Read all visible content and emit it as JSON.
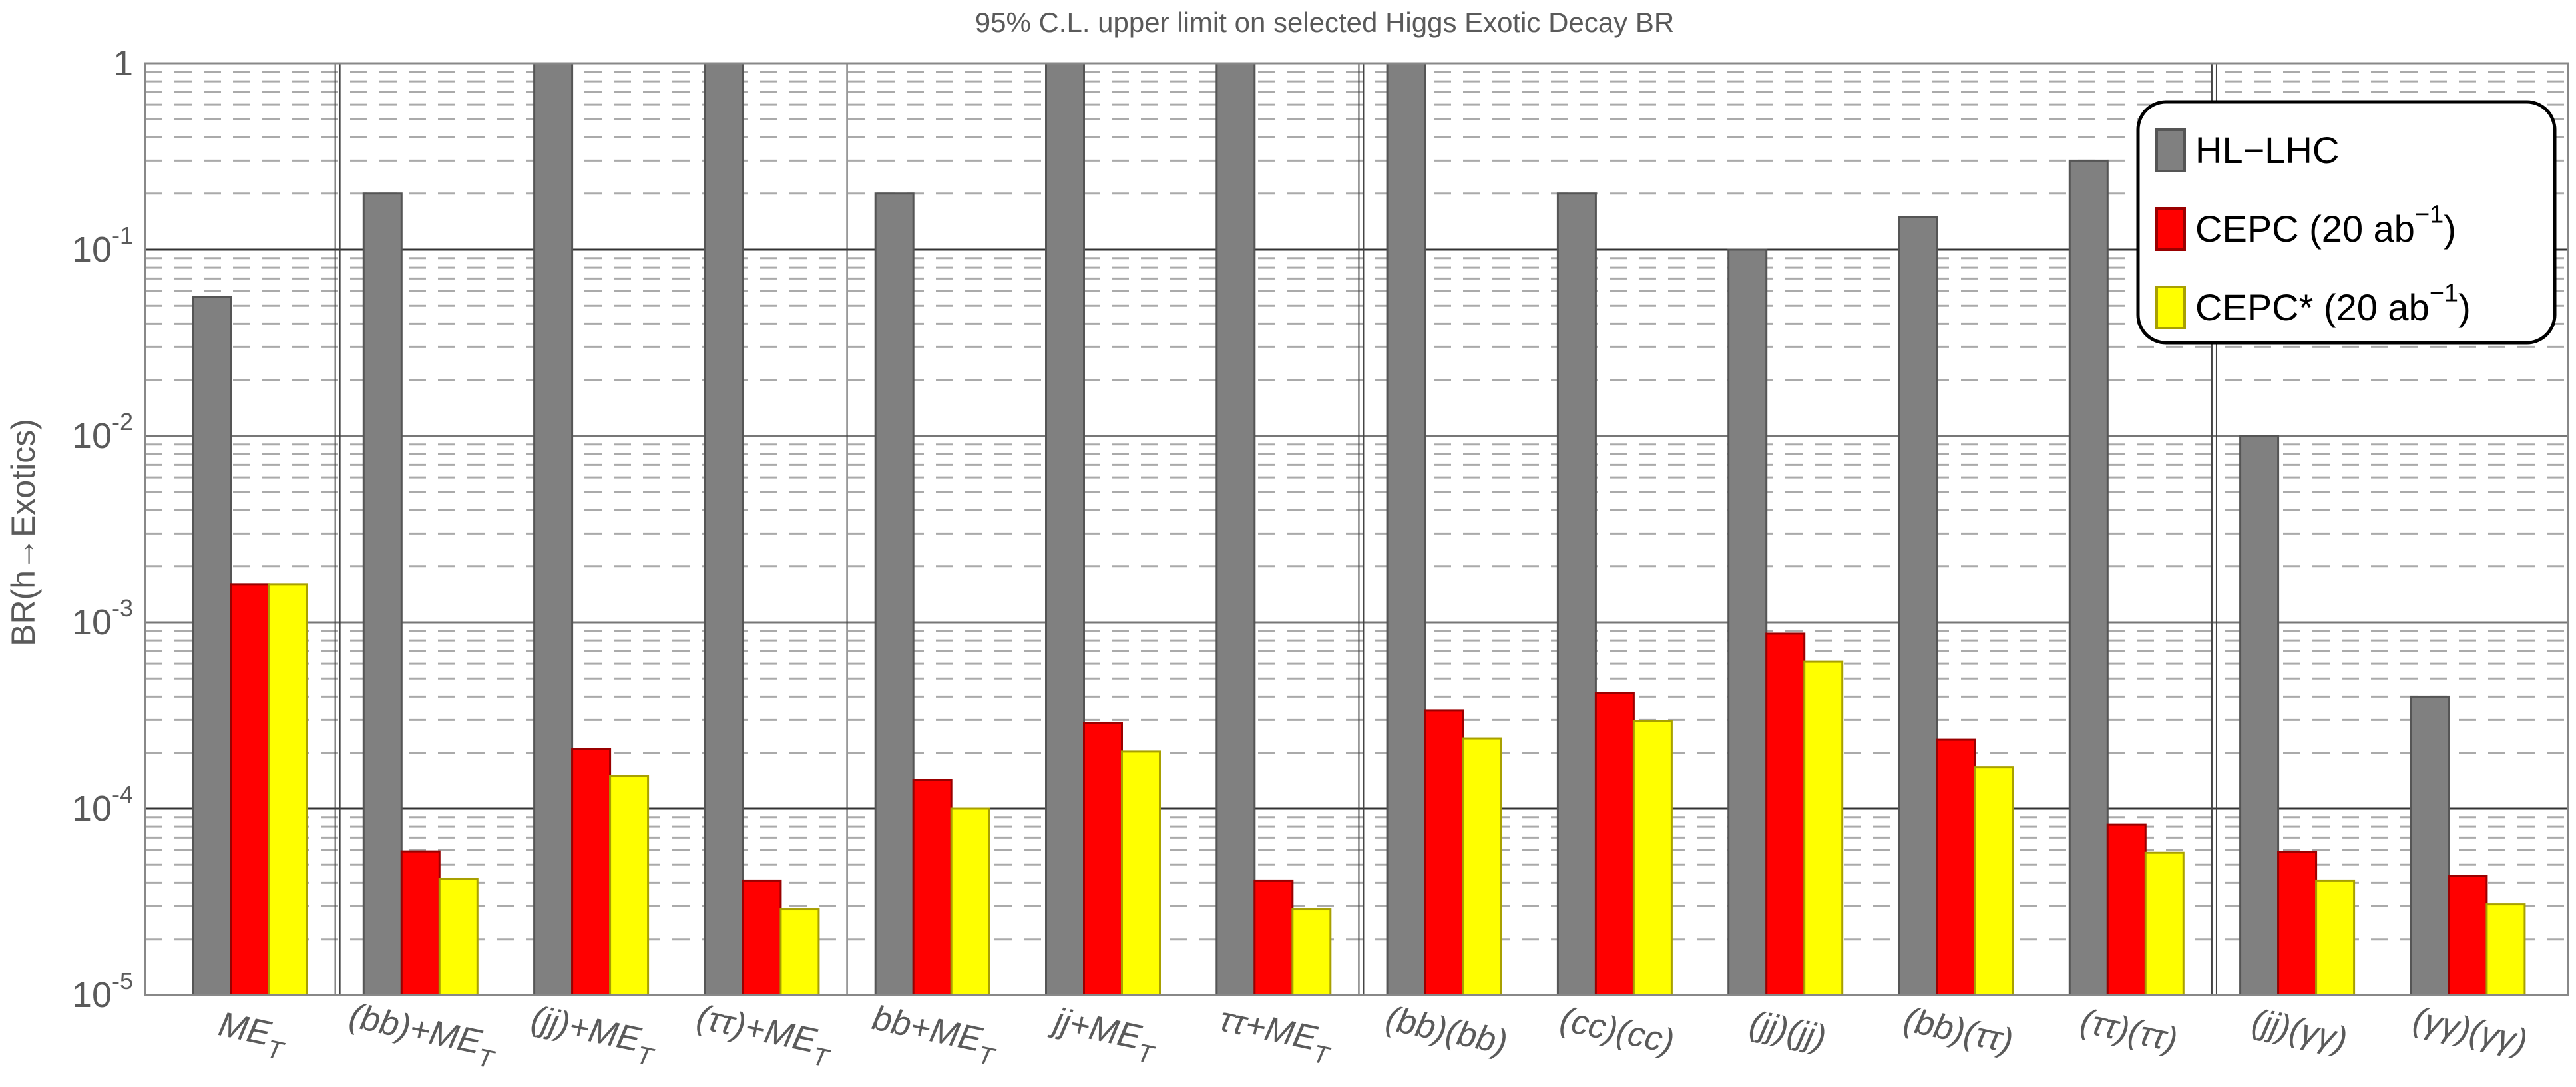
{
  "chart_data": {
    "type": "bar",
    "title": "95% C.L. upper limit on selected Higgs Exotic Decay BR",
    "ylabel": "BR(h→Exotics)",
    "xlabel": "",
    "yscale": "log",
    "ylim": [
      1e-05,
      1
    ],
    "yticks": [
      1,
      0.1,
      0.01,
      0.001,
      0.0001,
      1e-05
    ],
    "ytick_labels": [
      "1",
      "10^{-1}",
      "10^{-2}",
      "10^{-3}",
      "10^{-4}",
      "10^{-5}"
    ],
    "grid": "major solid, minor dashed",
    "legend_position": "top-right",
    "categories": [
      "ME_{T}",
      "(bb)+ME_{T}",
      "(jj)+ME_{T}",
      "(ττ)+ME_{T}",
      "bb+ME_{T}",
      "jj+ME_{T}",
      "ττ+ME_{T}",
      "(bb)(bb)",
      "(cc)(cc)",
      "(jj)(jj)",
      "(bb)(ττ)",
      "(ττ)(ττ)",
      "(jj)(γγ)",
      "(γγ)(γγ)"
    ],
    "series": [
      {
        "name": "HL−LHC",
        "color": "#808080",
        "values": [
          0.056,
          0.2,
          1,
          1,
          0.2,
          1,
          1,
          1,
          0.2,
          0.1,
          0.15,
          0.3,
          0.01,
          0.0004
        ]
      },
      {
        "name": "CEPC (20 ab^{−1})",
        "color": "#ff0000",
        "values": [
          0.0016,
          5.9e-05,
          0.00021,
          4.1e-05,
          0.000142,
          0.000288,
          4.1e-05,
          0.000338,
          0.000419,
          0.00087,
          0.000235,
          8.2e-05,
          5.85e-05,
          4.35e-05
        ]
      },
      {
        "name": "CEPC* (20 ab^{−1})",
        "color": "#ffff00",
        "values": [
          0.0016,
          4.2e-05,
          0.000149,
          2.9e-05,
          0.0001,
          0.000203,
          2.9e-05,
          0.000239,
          0.000296,
          0.000615,
          0.000167,
          5.8e-05,
          4.1e-05,
          3.07e-05
        ]
      }
    ]
  }
}
